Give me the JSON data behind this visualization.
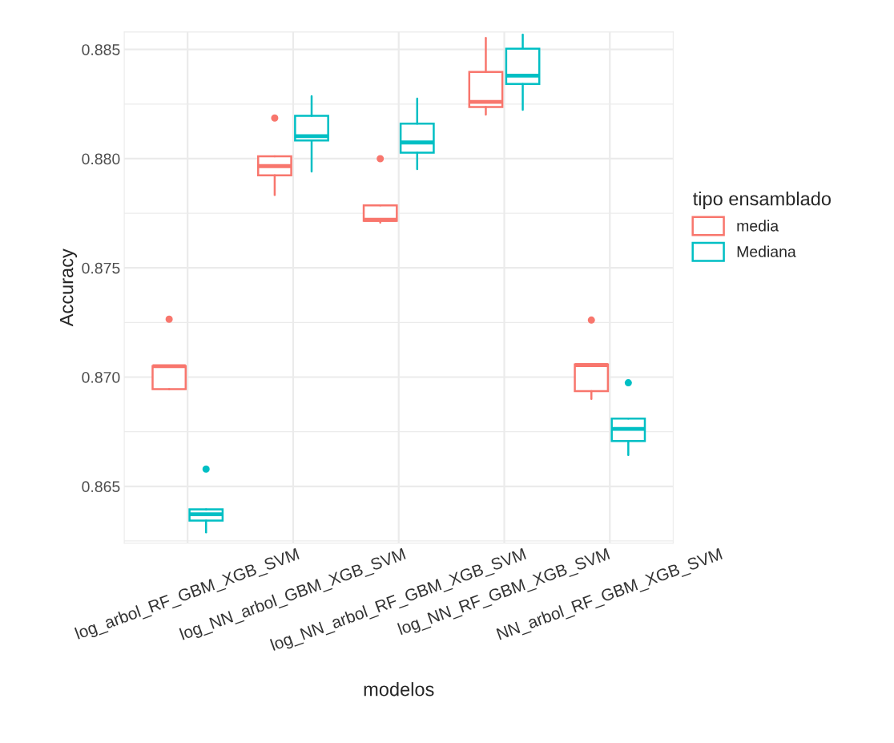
{
  "chart_data": {
    "type": "box",
    "xlabel": "modelos",
    "ylabel": "Accuracy",
    "legend_title": "tipo ensamblado",
    "legend": "right",
    "grid": true,
    "categories": [
      "log_arbol_RF_GBM_XGB_SVM",
      "log_NN_arbol_GBM_XGB_SVM",
      "log_NN_arbol_RF_GBM_XGB_SVM",
      "log_NN_RF_GBM_XGB_SVM",
      "NN_arbol_RF_GBM_XGB_SVM"
    ],
    "ylim": [
      0.8624,
      0.8858
    ],
    "yticks": [
      0.865,
      {
        "value": 0.87,
        "label": "0.870"
      },
      0.875,
      {
        "value": 0.88,
        "label": "0.880"
      },
      0.885
    ],
    "series": [
      {
        "name": "media",
        "color": "#f8766d",
        "boxes": [
          {
            "low": 0.86945,
            "q1": 0.86945,
            "median": 0.8705,
            "q3": 0.8705,
            "high": 0.8705,
            "outliers": [
              0.87265
            ]
          },
          {
            "low": 0.87834,
            "q1": 0.87924,
            "median": 0.87966,
            "q3": 0.88011,
            "high": 0.88011,
            "outliers": [
              0.88186
            ]
          },
          {
            "low": 0.87707,
            "q1": 0.87715,
            "median": 0.8772,
            "q3": 0.87786,
            "high": 0.87786,
            "outliers": [
              0.88
            ]
          },
          {
            "low": 0.88202,
            "q1": 0.88236,
            "median": 0.8826,
            "q3": 0.88397,
            "high": 0.88553
          },
          {
            "low": 0.869,
            "q1": 0.86936,
            "median": 0.87055,
            "q3": 0.87058,
            "high": 0.87058,
            "outliers": [
              0.87261
            ]
          }
        ]
      },
      {
        "name": "Mediana",
        "color": "#00bfc4",
        "boxes": [
          {
            "low": 0.86289,
            "q1": 0.86343,
            "median": 0.86372,
            "q3": 0.86395,
            "high": 0.86395,
            "outliers": [
              0.86579
            ]
          },
          {
            "low": 0.87941,
            "q1": 0.88083,
            "median": 0.88103,
            "q3": 0.88196,
            "high": 0.88286
          },
          {
            "low": 0.87952,
            "q1": 0.88027,
            "median": 0.88074,
            "q3": 0.8816,
            "high": 0.88275
          },
          {
            "low": 0.88224,
            "q1": 0.88342,
            "median": 0.8838,
            "q3": 0.88503,
            "high": 0.88568
          },
          {
            "low": 0.86643,
            "q1": 0.86707,
            "median": 0.86763,
            "q3": 0.8681,
            "high": 0.8681,
            "outliers": [
              0.86974
            ]
          }
        ]
      }
    ]
  }
}
